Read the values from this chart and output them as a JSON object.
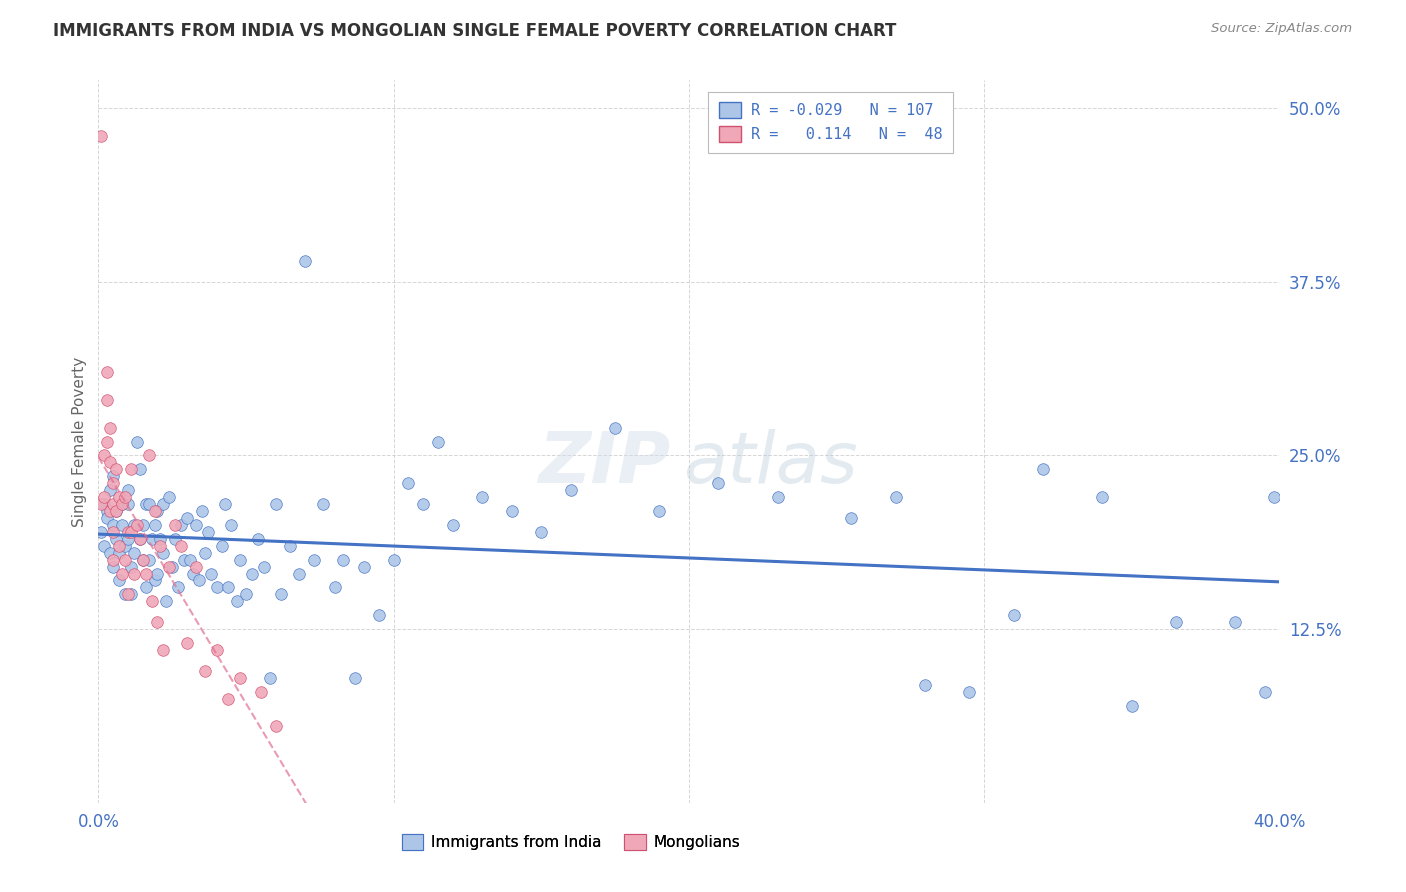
{
  "title": "IMMIGRANTS FROM INDIA VS MONGOLIAN SINGLE FEMALE POVERTY CORRELATION CHART",
  "source": "Source: ZipAtlas.com",
  "ylabel": "Single Female Poverty",
  "ytick_labels": [
    "",
    "12.5%",
    "25.0%",
    "37.5%",
    "50.0%"
  ],
  "ytick_values": [
    0.0,
    0.125,
    0.25,
    0.375,
    0.5
  ],
  "xmin": 0.0,
  "xmax": 0.4,
  "ymin": 0.0,
  "ymax": 0.52,
  "color_blue": "#adc6e8",
  "color_pink": "#f0a8b8",
  "color_blue_dark": "#4472c4",
  "color_pink_dark": "#d05070",
  "color_pink_trend": "#e07090",
  "watermark_zip": "ZIP",
  "watermark_atlas": "atlas",
  "india_x": [
    0.001,
    0.002,
    0.002,
    0.003,
    0.003,
    0.004,
    0.004,
    0.005,
    0.005,
    0.005,
    0.006,
    0.006,
    0.007,
    0.007,
    0.008,
    0.008,
    0.009,
    0.009,
    0.01,
    0.01,
    0.01,
    0.011,
    0.011,
    0.012,
    0.012,
    0.013,
    0.014,
    0.014,
    0.015,
    0.015,
    0.016,
    0.016,
    0.017,
    0.017,
    0.018,
    0.019,
    0.019,
    0.02,
    0.02,
    0.021,
    0.022,
    0.022,
    0.023,
    0.024,
    0.025,
    0.026,
    0.027,
    0.028,
    0.029,
    0.03,
    0.031,
    0.032,
    0.033,
    0.034,
    0.035,
    0.036,
    0.037,
    0.038,
    0.04,
    0.042,
    0.043,
    0.044,
    0.045,
    0.047,
    0.048,
    0.05,
    0.052,
    0.054,
    0.056,
    0.058,
    0.06,
    0.062,
    0.065,
    0.068,
    0.07,
    0.073,
    0.076,
    0.08,
    0.083,
    0.087,
    0.09,
    0.095,
    0.1,
    0.105,
    0.11,
    0.115,
    0.12,
    0.13,
    0.14,
    0.15,
    0.16,
    0.175,
    0.19,
    0.21,
    0.23,
    0.255,
    0.28,
    0.31,
    0.34,
    0.365,
    0.385,
    0.395,
    0.398,
    0.35,
    0.32,
    0.295,
    0.27
  ],
  "india_y": [
    0.195,
    0.215,
    0.185,
    0.21,
    0.205,
    0.225,
    0.18,
    0.2,
    0.235,
    0.17,
    0.19,
    0.21,
    0.18,
    0.16,
    0.2,
    0.215,
    0.185,
    0.15,
    0.19,
    0.215,
    0.225,
    0.17,
    0.15,
    0.2,
    0.18,
    0.26,
    0.24,
    0.19,
    0.2,
    0.175,
    0.215,
    0.155,
    0.175,
    0.215,
    0.19,
    0.16,
    0.2,
    0.165,
    0.21,
    0.19,
    0.18,
    0.215,
    0.145,
    0.22,
    0.17,
    0.19,
    0.155,
    0.2,
    0.175,
    0.205,
    0.175,
    0.165,
    0.2,
    0.16,
    0.21,
    0.18,
    0.195,
    0.165,
    0.155,
    0.185,
    0.215,
    0.155,
    0.2,
    0.145,
    0.175,
    0.15,
    0.165,
    0.19,
    0.17,
    0.09,
    0.215,
    0.15,
    0.185,
    0.165,
    0.39,
    0.175,
    0.215,
    0.155,
    0.175,
    0.09,
    0.17,
    0.135,
    0.175,
    0.23,
    0.215,
    0.26,
    0.2,
    0.22,
    0.21,
    0.195,
    0.225,
    0.27,
    0.21,
    0.23,
    0.22,
    0.205,
    0.085,
    0.135,
    0.22,
    0.13,
    0.13,
    0.08,
    0.22,
    0.07,
    0.24,
    0.08,
    0.22
  ],
  "mongolia_x": [
    0.001,
    0.001,
    0.002,
    0.002,
    0.003,
    0.003,
    0.003,
    0.004,
    0.004,
    0.004,
    0.005,
    0.005,
    0.005,
    0.005,
    0.006,
    0.006,
    0.007,
    0.007,
    0.008,
    0.008,
    0.009,
    0.009,
    0.01,
    0.01,
    0.011,
    0.011,
    0.012,
    0.013,
    0.014,
    0.015,
    0.016,
    0.017,
    0.018,
    0.019,
    0.02,
    0.021,
    0.022,
    0.024,
    0.026,
    0.028,
    0.03,
    0.033,
    0.036,
    0.04,
    0.044,
    0.048,
    0.055,
    0.06
  ],
  "mongolia_y": [
    0.48,
    0.215,
    0.25,
    0.22,
    0.31,
    0.29,
    0.26,
    0.27,
    0.245,
    0.21,
    0.23,
    0.215,
    0.195,
    0.175,
    0.24,
    0.21,
    0.22,
    0.185,
    0.215,
    0.165,
    0.22,
    0.175,
    0.195,
    0.15,
    0.24,
    0.195,
    0.165,
    0.2,
    0.19,
    0.175,
    0.165,
    0.25,
    0.145,
    0.21,
    0.13,
    0.185,
    0.11,
    0.17,
    0.2,
    0.185,
    0.115,
    0.17,
    0.095,
    0.11,
    0.075,
    0.09,
    0.08,
    0.055
  ]
}
